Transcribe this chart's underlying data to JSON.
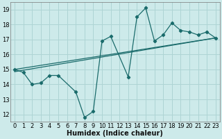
{
  "xlabel": "Humidex (Indice chaleur)",
  "bg_color": "#cdeaea",
  "grid_color": "#aed4d4",
  "line_color": "#1a6b6b",
  "xlim": [
    -0.5,
    23.5
  ],
  "ylim": [
    11.5,
    19.5
  ],
  "xticks": [
    0,
    1,
    2,
    3,
    4,
    5,
    6,
    7,
    8,
    9,
    10,
    11,
    12,
    13,
    14,
    15,
    16,
    17,
    18,
    19,
    20,
    21,
    22,
    23
  ],
  "yticks": [
    12,
    13,
    14,
    15,
    16,
    17,
    18,
    19
  ],
  "jagged_x": [
    0,
    1,
    2,
    3,
    4,
    5,
    7,
    8,
    9,
    10,
    11,
    13,
    14,
    15,
    16,
    17,
    18,
    19,
    20,
    21,
    22,
    23
  ],
  "jagged_y": [
    15.0,
    14.8,
    14.0,
    14.1,
    14.6,
    14.6,
    13.5,
    11.8,
    12.2,
    16.9,
    17.2,
    14.5,
    18.5,
    19.1,
    16.9,
    17.3,
    18.1,
    17.6,
    17.5,
    17.3,
    17.5,
    17.1
  ],
  "trend1_x": [
    0,
    23
  ],
  "trend1_y": [
    14.85,
    17.1
  ],
  "trend2_x": [
    0,
    23
  ],
  "trend2_y": [
    15.0,
    17.1
  ],
  "xlabel_fontsize": 7,
  "tick_fontsize": 6
}
